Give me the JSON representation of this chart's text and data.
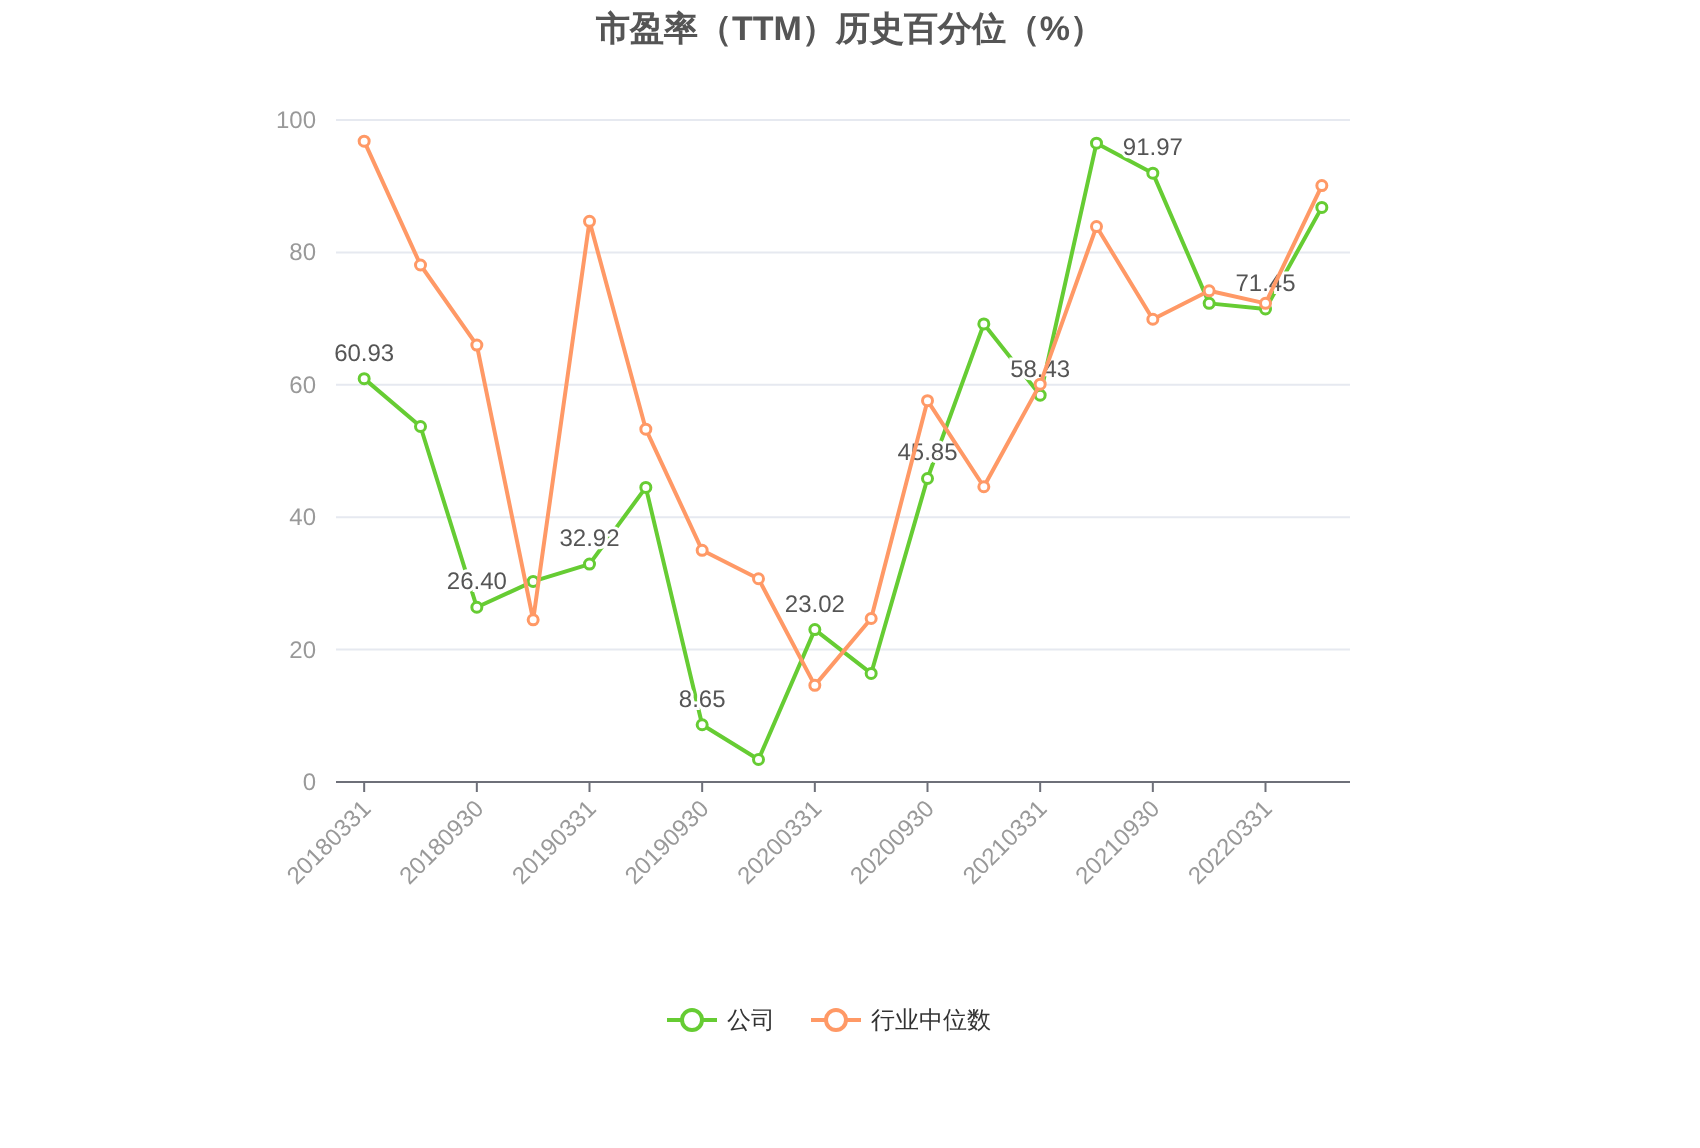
{
  "chart_data": {
    "type": "line",
    "title": "市盈率（TTM）历史百分位（%）",
    "categories": [
      "20180331",
      null,
      "20180930",
      null,
      "20190331",
      null,
      "20190930",
      null,
      "20200331",
      null,
      "20200930",
      null,
      "20210331",
      null,
      "20210930",
      null,
      "20220331",
      null
    ],
    "series": [
      {
        "name": "公司",
        "color": "#66cc33",
        "values": [
          60.93,
          53.7,
          26.4,
          30.3,
          32.92,
          44.5,
          8.65,
          3.4,
          23.02,
          16.4,
          45.85,
          69.2,
          58.43,
          96.5,
          91.97,
          72.3,
          71.45,
          86.8
        ],
        "value_labels": [
          "60.93",
          null,
          "26.40",
          null,
          "32.92",
          null,
          "8.65",
          null,
          "23.02",
          null,
          "45.85",
          null,
          "58.43",
          null,
          "91.97",
          null,
          "71.45",
          null
        ]
      },
      {
        "name": "行业中位数",
        "color": "#ff9966",
        "values": [
          96.8,
          78.1,
          66.0,
          24.5,
          84.7,
          53.3,
          35.0,
          30.7,
          14.6,
          24.7,
          57.6,
          44.6,
          60.1,
          83.9,
          69.9,
          74.2,
          72.3,
          90.1
        ]
      }
    ],
    "ylim": [
      0,
      100
    ],
    "yticks": [
      0,
      20,
      40,
      60,
      80,
      100
    ],
    "grid": "y",
    "legend": "bottom",
    "marker": "circle",
    "line_style": "solid"
  }
}
